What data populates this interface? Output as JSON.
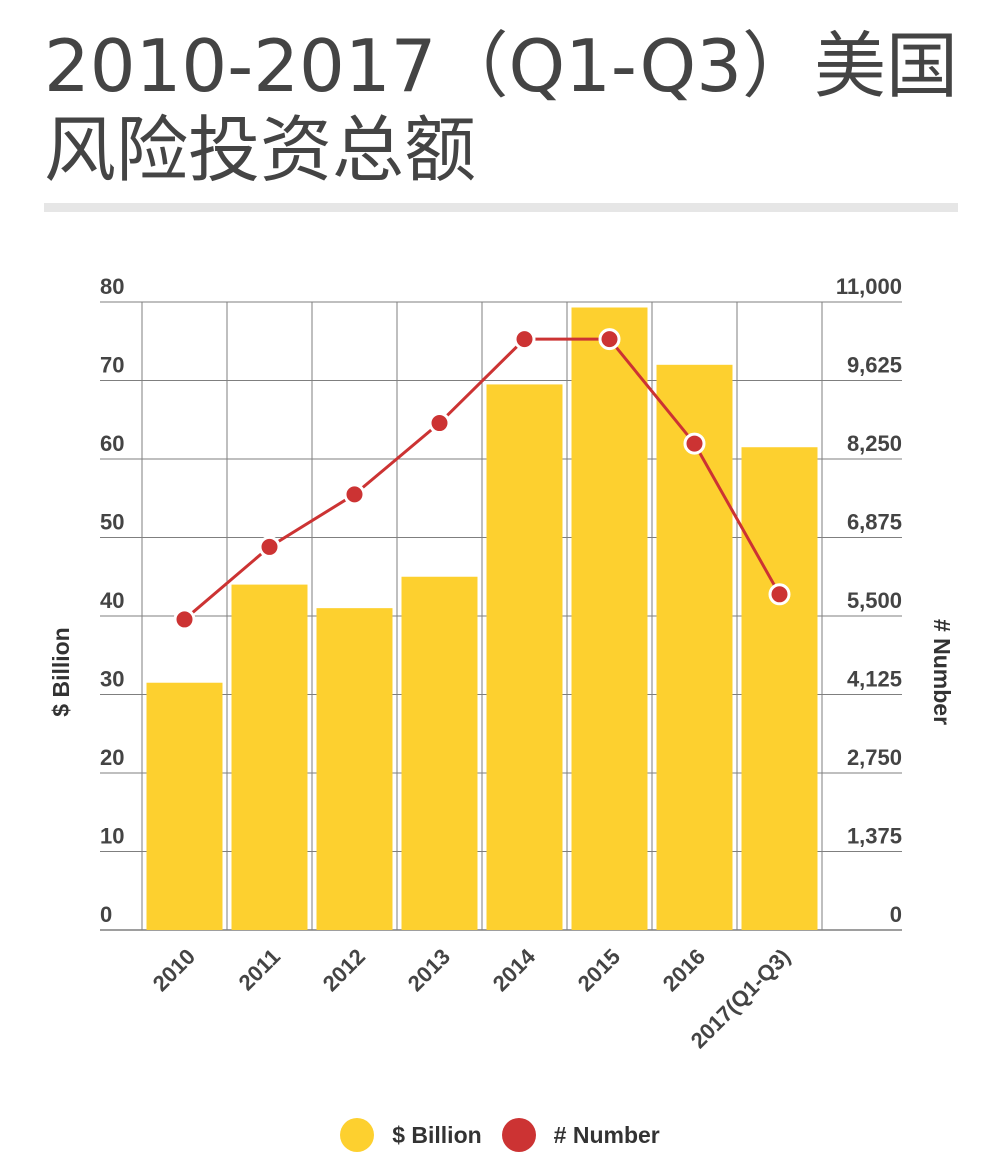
{
  "chart_data": {
    "type": "bar",
    "title": "2010-2017（Q1-Q3）美国风险投资总额",
    "categories": [
      "2010",
      "2011",
      "2012",
      "2013",
      "2014",
      "2015",
      "2016",
      "2017(Q1-Q3)"
    ],
    "series": [
      {
        "name": "$ Billion",
        "type": "bar",
        "axis": "left",
        "color": "#FDD02F",
        "values": [
          31.5,
          44,
          41,
          45,
          69.5,
          79.3,
          72,
          61.5
        ]
      },
      {
        "name": "# Number",
        "type": "line",
        "axis": "right",
        "color": "#CC3333",
        "values": [
          5440,
          6710,
          7630,
          8880,
          10350,
          10350,
          8520,
          5880
        ]
      }
    ],
    "ylabel": "$ Billion",
    "y2label": "# Number",
    "ylim": [
      0,
      80
    ],
    "y2lim": [
      0,
      11000
    ],
    "yticks": [
      "0",
      "10",
      "20",
      "30",
      "40",
      "50",
      "60",
      "70",
      "80"
    ],
    "y2ticks": [
      "0",
      "1,375",
      "2,750",
      "4,125",
      "5,500",
      "6,875",
      "8,250",
      "9,625",
      "11,000"
    ],
    "grid": true,
    "legend_position": "bottom-center"
  },
  "colors": {
    "text": "#444444",
    "grid": "#7f7f7f",
    "rule": "#e6e6e6"
  }
}
